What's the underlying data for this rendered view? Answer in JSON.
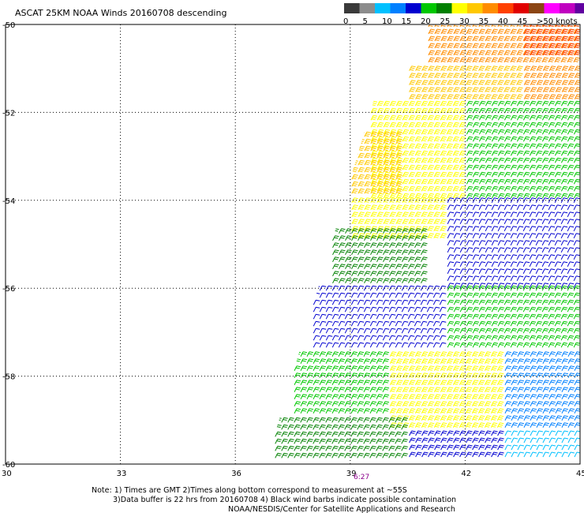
{
  "title": "ASCAT 25KM NOAA Winds 20160708 descending",
  "legend": {
    "labels": [
      "0",
      "5",
      "10",
      "15",
      "20",
      "25",
      "30",
      "35",
      "40",
      "45",
      ">50 knots"
    ],
    "colors": [
      "#3a3a3a",
      "#8c8c8c",
      "#00c0ff",
      "#0080ff",
      "#0000d0",
      "#00c800",
      "#008000",
      "#ffff00",
      "#ffc800",
      "#ff8c00",
      "#ff4000",
      "#e00000",
      "#8b4513",
      "#ff00ff",
      "#c000c0",
      "#6000a0"
    ]
  },
  "lat_labels": [
    "-50",
    "-52",
    "-54",
    "-56",
    "-58",
    "-60"
  ],
  "lon_labels": [
    "30",
    "33",
    "36",
    "39",
    "42",
    "45"
  ],
  "pass_time": "6:27",
  "notes": {
    "line1": "Note: 1) Times are GMT 2)Times along bottom correspond to measurement at ~55S",
    "line2": "3)Data buffer is 22 hrs from 20160708 4) Black wind barbs indicate possible contamination",
    "line3": "NOAA/NESDIS/Center for Satellite Applications and Research"
  },
  "map": {
    "lat_range": [
      -60,
      -50
    ],
    "lon_range": [
      30,
      45
    ],
    "wind_regions": [
      {
        "lat": [
          -51.0,
          -50.0
        ],
        "lon": [
          41.0,
          45.0
        ],
        "speed_kt": 33,
        "color": "#ff8c00"
      },
      {
        "lat": [
          -50.8,
          -50.0
        ],
        "lon": [
          43.5,
          45.0
        ],
        "speed_kt": 37,
        "color": "#ff4000"
      },
      {
        "lat": [
          -51.8,
          -51.0
        ],
        "lon": [
          40.5,
          43.5
        ],
        "speed_kt": 28,
        "color": "#ffc800"
      },
      {
        "lat": [
          -51.8,
          -51.0
        ],
        "lon": [
          43.5,
          45.0
        ],
        "speed_kt": 31,
        "color": "#ff8c00"
      },
      {
        "lat": [
          -54.0,
          -51.8
        ],
        "lon": [
          39.5,
          42.0
        ],
        "speed_kt": 26,
        "color": "#ffff00"
      },
      {
        "lat": [
          -54.0,
          -52.5
        ],
        "lon": [
          39.0,
          40.2
        ],
        "speed_kt": 29,
        "color": "#ffc800"
      },
      {
        "lat": [
          -54.0,
          -51.8
        ],
        "lon": [
          42.0,
          45.0
        ],
        "speed_kt": 21,
        "color": "#00c800"
      },
      {
        "lat": [
          -55.0,
          -54.0
        ],
        "lon": [
          39.0,
          41.5
        ],
        "speed_kt": 26,
        "color": "#ffff00"
      },
      {
        "lat": [
          -56.0,
          -54.7
        ],
        "lon": [
          38.5,
          41.0
        ],
        "speed_kt": 22,
        "color": "#008000"
      },
      {
        "lat": [
          -56.0,
          -54.0
        ],
        "lon": [
          41.5,
          45.0
        ],
        "speed_kt": 14,
        "color": "#0000d0"
      },
      {
        "lat": [
          -57.5,
          -56.0
        ],
        "lon": [
          38.0,
          41.5
        ],
        "speed_kt": 14,
        "color": "#0000d0"
      },
      {
        "lat": [
          -57.5,
          -56.0
        ],
        "lon": [
          41.5,
          45.0
        ],
        "speed_kt": 19,
        "color": "#00c800"
      },
      {
        "lat": [
          -59.0,
          -57.5
        ],
        "lon": [
          37.5,
          40.0
        ],
        "speed_kt": 20,
        "color": "#00c800"
      },
      {
        "lat": [
          -59.3,
          -57.5
        ],
        "lon": [
          40.0,
          43.0
        ],
        "speed_kt": 26,
        "color": "#ffff00"
      },
      {
        "lat": [
          -59.3,
          -57.5
        ],
        "lon": [
          43.0,
          45.0
        ],
        "speed_kt": 16,
        "color": "#0080ff"
      },
      {
        "lat": [
          -60.0,
          -59.0
        ],
        "lon": [
          37.0,
          40.5
        ],
        "speed_kt": 21,
        "color": "#008000"
      },
      {
        "lat": [
          -60.0,
          -59.3
        ],
        "lon": [
          40.5,
          43.0
        ],
        "speed_kt": 15,
        "color": "#0000d0"
      },
      {
        "lat": [
          -60.0,
          -59.3
        ],
        "lon": [
          43.0,
          45.0
        ],
        "speed_kt": 10,
        "color": "#00c0ff"
      }
    ]
  }
}
